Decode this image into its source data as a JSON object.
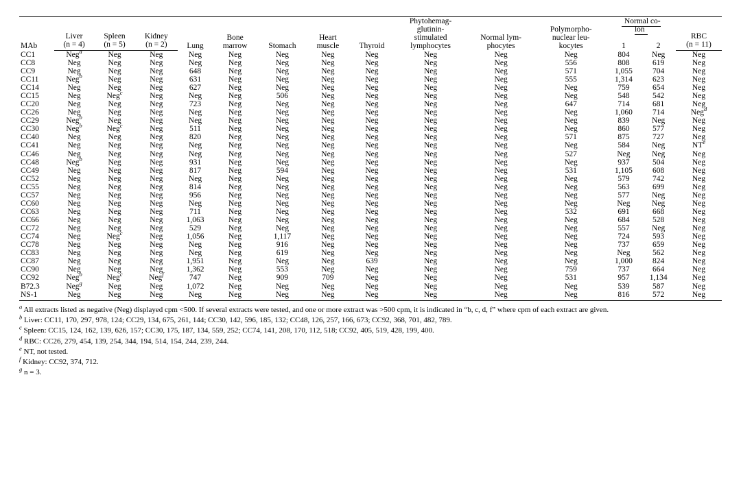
{
  "table": {
    "font_family": "Times New Roman",
    "font_size_pt": 11.5,
    "text_color": "#000000",
    "background_color": "#ffffff",
    "rule_color": "#000000",
    "columns": [
      {
        "key": "mab",
        "label": "MAb",
        "sub": ""
      },
      {
        "key": "liver",
        "label": "Liver",
        "sub": "(n = 4)"
      },
      {
        "key": "spleen",
        "label": "Spleen",
        "sub": "(n = 5)"
      },
      {
        "key": "kidney",
        "label": "Kidney",
        "sub": "(n = 2)"
      },
      {
        "key": "lung",
        "label": "Lung",
        "sub": ""
      },
      {
        "key": "bm",
        "label": "Bone marrow",
        "sub": ""
      },
      {
        "key": "stomach",
        "label": "Stomach",
        "sub": ""
      },
      {
        "key": "heart",
        "label": "Heart muscle",
        "sub": ""
      },
      {
        "key": "thyroid",
        "label": "Thyroid",
        "sub": ""
      },
      {
        "key": "pha",
        "label": "Phytohemag- glutinin- stimulated lymphocytes",
        "sub": ""
      },
      {
        "key": "nlym",
        "label": "Normal lym- phocytes",
        "sub": ""
      },
      {
        "key": "pmn",
        "label": "Polymorpho- nuclear leu- kocytes",
        "sub": ""
      },
      {
        "key": "colon1",
        "label": "1",
        "sub": ""
      },
      {
        "key": "colon2",
        "label": "2",
        "sub": ""
      },
      {
        "key": "rbc",
        "label": "RBC",
        "sub": "(n = 11)"
      }
    ],
    "colon_group_label": "Normal co- lon",
    "rows": [
      {
        "mab": "CC1",
        "liver": "Neg",
        "liver_sup": "a",
        "spleen": "Neg",
        "kidney": "Neg",
        "lung": "Neg",
        "bm": "Neg",
        "stomach": "Neg",
        "heart": "Neg",
        "thyroid": "Neg",
        "pha": "Neg",
        "nlym": "Neg",
        "pmn": "Neg",
        "colon1": "804",
        "colon2": "Neg",
        "rbc": "Neg"
      },
      {
        "mab": "CC8",
        "liver": "Neg",
        "spleen": "Neg",
        "kidney": "Neg",
        "lung": "Neg",
        "bm": "Neg",
        "stomach": "Neg",
        "heart": "Neg",
        "thyroid": "Neg",
        "pha": "Neg",
        "nlym": "Neg",
        "pmn": "556",
        "colon1": "808",
        "colon2": "619",
        "rbc": "Neg"
      },
      {
        "mab": "CC9",
        "liver": "Neg",
        "spleen": "Neg",
        "kidney": "Neg",
        "lung": "648",
        "bm": "Neg",
        "stomach": "Neg",
        "heart": "Neg",
        "thyroid": "Neg",
        "pha": "Neg",
        "nlym": "Neg",
        "pmn": "571",
        "colon1": "1,055",
        "colon2": "704",
        "rbc": "Neg"
      },
      {
        "mab": "CC11",
        "liver": "Neg",
        "liver_sup": "b",
        "spleen": "Neg",
        "kidney": "Neg",
        "lung": "631",
        "bm": "Neg",
        "stomach": "Neg",
        "heart": "Neg",
        "thyroid": "Neg",
        "pha": "Neg",
        "nlym": "Neg",
        "pmn": "555",
        "colon1": "1,314",
        "colon2": "623",
        "rbc": "Neg"
      },
      {
        "mab": "CC14",
        "liver": "Neg",
        "spleen": "Neg",
        "kidney": "Neg",
        "lung": "627",
        "bm": "Neg",
        "stomach": "Neg",
        "heart": "Neg",
        "thyroid": "Neg",
        "pha": "Neg",
        "nlym": "Neg",
        "pmn": "Neg",
        "colon1": "759",
        "colon2": "654",
        "rbc": "Neg"
      },
      {
        "mab": "CC15",
        "liver": "Neg",
        "spleen": "Neg",
        "spleen_sup": "c",
        "kidney": "Neg",
        "lung": "Neg",
        "bm": "Neg",
        "stomach": "506",
        "heart": "Neg",
        "thyroid": "Neg",
        "pha": "Neg",
        "nlym": "Neg",
        "pmn": "Neg",
        "colon1": "548",
        "colon2": "542",
        "rbc": "Neg"
      },
      {
        "mab": "CC20",
        "liver": "Neg",
        "spleen": "Neg",
        "kidney": "Neg",
        "lung": "723",
        "bm": "Neg",
        "stomach": "Neg",
        "heart": "Neg",
        "thyroid": "Neg",
        "pha": "Neg",
        "nlym": "Neg",
        "pmn": "647",
        "colon1": "714",
        "colon2": "681",
        "rbc": "Neg"
      },
      {
        "mab": "CC26",
        "liver": "Neg",
        "spleen": "Neg",
        "kidney": "Neg",
        "lung": "Neg",
        "bm": "Neg",
        "stomach": "Neg",
        "heart": "Neg",
        "thyroid": "Neg",
        "pha": "Neg",
        "nlym": "Neg",
        "pmn": "Neg",
        "colon1": "1,060",
        "colon2": "714",
        "rbc": "Neg",
        "rbc_sup": "d"
      },
      {
        "mab": "CC29",
        "liver": "Neg",
        "liver_sup": "b",
        "spleen": "Neg",
        "kidney": "Neg",
        "lung": "Neg",
        "bm": "Neg",
        "stomach": "Neg",
        "heart": "Neg",
        "thyroid": "Neg",
        "pha": "Neg",
        "nlym": "Neg",
        "pmn": "Neg",
        "colon1": "839",
        "colon2": "Neg",
        "rbc": "Neg"
      },
      {
        "mab": "CC30",
        "liver": "Neg",
        "liver_sup": "b",
        "spleen": "Neg",
        "spleen_sup": "c",
        "kidney": "Neg",
        "lung": "511",
        "bm": "Neg",
        "stomach": "Neg",
        "heart": "Neg",
        "thyroid": "Neg",
        "pha": "Neg",
        "nlym": "Neg",
        "pmn": "Neg",
        "colon1": "860",
        "colon2": "577",
        "rbc": "Neg"
      },
      {
        "mab": "CC40",
        "liver": "Neg",
        "spleen": "Neg",
        "kidney": "Neg",
        "lung": "820",
        "bm": "Neg",
        "stomach": "Neg",
        "heart": "Neg",
        "thyroid": "Neg",
        "pha": "Neg",
        "nlym": "Neg",
        "pmn": "571",
        "colon1": "875",
        "colon2": "727",
        "rbc": "Neg"
      },
      {
        "mab": "CC41",
        "liver": "Neg",
        "spleen": "Neg",
        "kidney": "Neg",
        "lung": "Neg",
        "bm": "Neg",
        "stomach": "Neg",
        "heart": "Neg",
        "thyroid": "Neg",
        "pha": "Neg",
        "nlym": "Neg",
        "pmn": "Neg",
        "colon1": "584",
        "colon2": "Neg",
        "rbc": "NT",
        "rbc_sup": "e"
      },
      {
        "mab": "CC46",
        "liver": "Neg",
        "spleen": "Neg",
        "kidney": "Neg",
        "lung": "Neg",
        "bm": "Neg",
        "stomach": "Neg",
        "heart": "Neg",
        "thyroid": "Neg",
        "pha": "Neg",
        "nlym": "Neg",
        "pmn": "527",
        "colon1": "Neg",
        "colon2": "Neg",
        "rbc": "Neg"
      },
      {
        "mab": "CC48",
        "liver": "Neg",
        "liver_sup": "b",
        "spleen": "Neg",
        "kidney": "Neg",
        "lung": "931",
        "bm": "Neg",
        "stomach": "Neg",
        "heart": "Neg",
        "thyroid": "Neg",
        "pha": "Neg",
        "nlym": "Neg",
        "pmn": "Neg",
        "colon1": "937",
        "colon2": "504",
        "rbc": "Neg"
      },
      {
        "mab": "CC49",
        "liver": "Neg",
        "spleen": "Neg",
        "kidney": "Neg",
        "lung": "817",
        "bm": "Neg",
        "stomach": "594",
        "heart": "Neg",
        "thyroid": "Neg",
        "pha": "Neg",
        "nlym": "Neg",
        "pmn": "531",
        "colon1": "1,105",
        "colon2": "608",
        "rbc": "Neg"
      },
      {
        "mab": "CC52",
        "liver": "Neg",
        "spleen": "Neg",
        "kidney": "Neg",
        "lung": "Neg",
        "bm": "Neg",
        "stomach": "Neg",
        "heart": "Neg",
        "thyroid": "Neg",
        "pha": "Neg",
        "nlym": "Neg",
        "pmn": "Neg",
        "colon1": "579",
        "colon2": "742",
        "rbc": "Neg"
      },
      {
        "mab": "CC55",
        "liver": "Neg",
        "spleen": "Neg",
        "kidney": "Neg",
        "lung": "814",
        "bm": "Neg",
        "stomach": "Neg",
        "heart": "Neg",
        "thyroid": "Neg",
        "pha": "Neg",
        "nlym": "Neg",
        "pmn": "Neg",
        "colon1": "563",
        "colon2": "699",
        "rbc": "Neg"
      },
      {
        "mab": "CC57",
        "liver": "Neg",
        "spleen": "Neg",
        "kidney": "Neg",
        "lung": "956",
        "bm": "Neg",
        "stomach": "Neg",
        "heart": "Neg",
        "thyroid": "Neg",
        "pha": "Neg",
        "nlym": "Neg",
        "pmn": "Neg",
        "colon1": "577",
        "colon2": "Neg",
        "rbc": "Neg"
      },
      {
        "mab": "CC60",
        "liver": "Neg",
        "spleen": "Neg",
        "kidney": "Neg",
        "lung": "Neg",
        "bm": "Neg",
        "stomach": "Neg",
        "heart": "Neg",
        "thyroid": "Neg",
        "pha": "Neg",
        "nlym": "Neg",
        "pmn": "Neg",
        "colon1": "Neg",
        "colon2": "Neg",
        "rbc": "Neg"
      },
      {
        "mab": "CC63",
        "liver": "Neg",
        "spleen": "Neg",
        "kidney": "Neg",
        "lung": "711",
        "bm": "Neg",
        "stomach": "Neg",
        "heart": "Neg",
        "thyroid": "Neg",
        "pha": "Neg",
        "nlym": "Neg",
        "pmn": "532",
        "colon1": "691",
        "colon2": "668",
        "rbc": "Neg"
      },
      {
        "mab": "CC66",
        "liver": "Neg",
        "spleen": "Neg",
        "kidney": "Neg",
        "lung": "1,063",
        "bm": "Neg",
        "stomach": "Neg",
        "heart": "Neg",
        "thyroid": "Neg",
        "pha": "Neg",
        "nlym": "Neg",
        "pmn": "Neg",
        "colon1": "684",
        "colon2": "528",
        "rbc": "Neg"
      },
      {
        "mab": "CC72",
        "liver": "Neg",
        "spleen": "Neg",
        "kidney": "Neg",
        "lung": "529",
        "bm": "Neg",
        "stomach": "Neg",
        "heart": "Neg",
        "thyroid": "Neg",
        "pha": "Neg",
        "nlym": "Neg",
        "pmn": "Neg",
        "colon1": "557",
        "colon2": "Neg",
        "rbc": "Neg"
      },
      {
        "mab": "CC74",
        "liver": "Neg",
        "spleen": "Neg",
        "spleen_sup": "c",
        "kidney": "Neg",
        "lung": "1,056",
        "bm": "Neg",
        "stomach": "1,117",
        "heart": "Neg",
        "thyroid": "Neg",
        "pha": "Neg",
        "nlym": "Neg",
        "pmn": "Neg",
        "colon1": "724",
        "colon2": "593",
        "rbc": "Neg"
      },
      {
        "mab": "CC78",
        "liver": "Neg",
        "spleen": "Neg",
        "kidney": "Neg",
        "lung": "Neg",
        "bm": "Neg",
        "stomach": "916",
        "heart": "Neg",
        "thyroid": "Neg",
        "pha": "Neg",
        "nlym": "Neg",
        "pmn": "Neg",
        "colon1": "737",
        "colon2": "659",
        "rbc": "Neg"
      },
      {
        "mab": "CC83",
        "liver": "Neg",
        "spleen": "Neg",
        "kidney": "Neg",
        "lung": "Neg",
        "bm": "Neg",
        "stomach": "619",
        "heart": "Neg",
        "thyroid": "Neg",
        "pha": "Neg",
        "nlym": "Neg",
        "pmn": "Neg",
        "colon1": "Neg",
        "colon2": "562",
        "rbc": "Neg"
      },
      {
        "mab": "CC87",
        "liver": "Neg",
        "spleen": "Neg",
        "kidney": "Neg",
        "lung": "1,951",
        "bm": "Neg",
        "stomach": "Neg",
        "heart": "Neg",
        "thyroid": "639",
        "pha": "Neg",
        "nlym": "Neg",
        "pmn": "Neg",
        "colon1": "1,000",
        "colon2": "824",
        "rbc": "Neg"
      },
      {
        "mab": "CC90",
        "liver": "Neg",
        "spleen": "Neg",
        "kidney": "Neg",
        "lung": "1,362",
        "bm": "Neg",
        "stomach": "553",
        "heart": "Neg",
        "thyroid": "Neg",
        "pha": "Neg",
        "nlym": "Neg",
        "pmn": "759",
        "colon1": "737",
        "colon2": "664",
        "rbc": "Neg"
      },
      {
        "mab": "CC92",
        "liver": "Neg",
        "liver_sup": "b",
        "spleen": "Neg",
        "spleen_sup": "c",
        "kidney": "Neg",
        "kidney_sup": "f",
        "lung": "747",
        "bm": "Neg",
        "stomach": "909",
        "heart": "709",
        "thyroid": "Neg",
        "pha": "Neg",
        "nlym": "Neg",
        "pmn": "531",
        "colon1": "957",
        "colon2": "1,134",
        "rbc": "Neg"
      },
      {
        "mab": "B72.3",
        "liver": "Neg",
        "liver_sup": "g",
        "spleen": "Neg",
        "kidney": "Neg",
        "lung": "1,072",
        "bm": "Neg",
        "stomach": "Neg",
        "heart": "Neg",
        "thyroid": "Neg",
        "pha": "Neg",
        "nlym": "Neg",
        "pmn": "Neg",
        "colon1": "539",
        "colon2": "587",
        "rbc": "Neg"
      },
      {
        "mab": "NS-1",
        "liver": "Neg",
        "spleen": "Neg",
        "kidney": "Neg",
        "lung": "Neg",
        "bm": "Neg",
        "stomach": "Neg",
        "heart": "Neg",
        "thyroid": "Neg",
        "pha": "Neg",
        "nlym": "Neg",
        "pmn": "Neg",
        "colon1": "816",
        "colon2": "572",
        "rbc": "Neg"
      }
    ]
  },
  "footnotes": [
    {
      "mark": "a",
      "text": "All extracts listed as negative (Neg) displayed cpm <500. If several extracts were tested, and one or more extract was >500 cpm, it is indicated in “b, c, d, f” where cpm of each extract are given."
    },
    {
      "mark": "b",
      "text": "Liver: CC11, 170, 297, 978, 124; CC29, 134, 675, 261, 144; CC30, 142, 596, 185, 132; CC48, 126, 257, 166, 673; CC92, 368, 701, 482, 789."
    },
    {
      "mark": "c",
      "text": "Spleen: CC15, 124, 162, 139, 626, 157; CC30, 175, 187, 134, 559, 252; CC74, 141, 208, 170, 112, 518; CC92, 405, 519, 428, 199, 400."
    },
    {
      "mark": "d",
      "text": "RBC: CC26, 279, 454, 139, 254, 344, 194, 514, 154, 244, 239, 244."
    },
    {
      "mark": "e",
      "text": "NT, not tested."
    },
    {
      "mark": "f",
      "text": "Kidney: CC92, 374, 712."
    },
    {
      "mark": "g",
      "text": "n = 3."
    }
  ]
}
